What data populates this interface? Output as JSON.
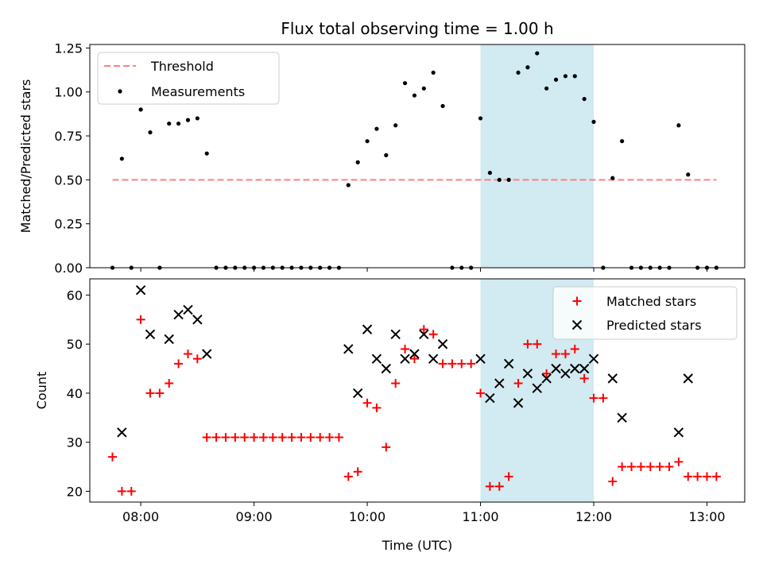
{
  "chart_data": [
    {
      "type": "scatter",
      "title": "Flux total observing time = 1.00 h",
      "xlabel": "",
      "ylabel": "Matched/Predicted stars",
      "xlim": [
        "07:33",
        "13:20"
      ],
      "ylim": [
        0,
        1.27
      ],
      "yticks": [
        "0.00",
        "0.25",
        "0.50",
        "0.75",
        "1.00",
        "1.25"
      ],
      "highlight_span": {
        "from": "11:00",
        "to": "12:00",
        "color": "#add8e6"
      },
      "legend": {
        "placement": "top-left",
        "entries": [
          "Threshold",
          "Measurements"
        ]
      },
      "series": [
        {
          "name": "Threshold",
          "style": "dashed-line",
          "color": "#ff7f7f",
          "points": [
            [
              "07:45",
              0.5
            ],
            [
              "13:05",
              0.5
            ]
          ]
        },
        {
          "name": "Measurements",
          "style": "dot",
          "color": "#000000",
          "points": [
            [
              "07:45",
              0.0
            ],
            [
              "07:50",
              0.62
            ],
            [
              "07:55",
              0.0
            ],
            [
              "08:00",
              0.9
            ],
            [
              "08:05",
              0.77
            ],
            [
              "08:10",
              0.0
            ],
            [
              "08:15",
              0.82
            ],
            [
              "08:20",
              0.82
            ],
            [
              "08:25",
              0.84
            ],
            [
              "08:30",
              0.85
            ],
            [
              "08:35",
              0.65
            ],
            [
              "08:40",
              0.0
            ],
            [
              "08:45",
              0.0
            ],
            [
              "08:50",
              0.0
            ],
            [
              "08:55",
              0.0
            ],
            [
              "09:00",
              0.0
            ],
            [
              "09:05",
              0.0
            ],
            [
              "09:10",
              0.0
            ],
            [
              "09:15",
              0.0
            ],
            [
              "09:20",
              0.0
            ],
            [
              "09:25",
              0.0
            ],
            [
              "09:30",
              0.0
            ],
            [
              "09:35",
              0.0
            ],
            [
              "09:40",
              0.0
            ],
            [
              "09:45",
              0.0
            ],
            [
              "09:50",
              0.47
            ],
            [
              "09:55",
              0.6
            ],
            [
              "10:00",
              0.72
            ],
            [
              "10:05",
              0.79
            ],
            [
              "10:10",
              0.64
            ],
            [
              "10:15",
              0.81
            ],
            [
              "10:20",
              1.05
            ],
            [
              "10:25",
              0.98
            ],
            [
              "10:30",
              1.02
            ],
            [
              "10:35",
              1.11
            ],
            [
              "10:40",
              0.92
            ],
            [
              "10:45",
              0.0
            ],
            [
              "10:50",
              0.0
            ],
            [
              "10:55",
              0.0
            ],
            [
              "11:00",
              0.85
            ],
            [
              "11:05",
              0.54
            ],
            [
              "11:10",
              0.5
            ],
            [
              "11:15",
              0.5
            ],
            [
              "11:20",
              1.11
            ],
            [
              "11:25",
              1.14
            ],
            [
              "11:30",
              1.22
            ],
            [
              "11:35",
              1.02
            ],
            [
              "11:40",
              1.07
            ],
            [
              "11:45",
              1.09
            ],
            [
              "11:50",
              1.09
            ],
            [
              "11:55",
              0.96
            ],
            [
              "12:00",
              0.83
            ],
            [
              "12:05",
              0.0
            ],
            [
              "12:10",
              0.51
            ],
            [
              "12:15",
              0.72
            ],
            [
              "12:20",
              0.0
            ],
            [
              "12:25",
              0.0
            ],
            [
              "12:30",
              0.0
            ],
            [
              "12:35",
              0.0
            ],
            [
              "12:40",
              0.0
            ],
            [
              "12:45",
              0.81
            ],
            [
              "12:50",
              0.53
            ],
            [
              "12:55",
              0.0
            ],
            [
              "13:00",
              0.0
            ],
            [
              "13:05",
              0.0
            ]
          ]
        }
      ]
    },
    {
      "type": "scatter",
      "title": "",
      "xlabel": "Time (UTC)",
      "ylabel": "Count",
      "xlim": [
        "07:33",
        "13:20"
      ],
      "ylim": [
        17.8,
        63.3
      ],
      "yticks": [
        "20",
        "30",
        "40",
        "50",
        "60"
      ],
      "xticks": [
        "08:00",
        "09:00",
        "10:00",
        "11:00",
        "12:00",
        "13:00"
      ],
      "highlight_span": {
        "from": "11:00",
        "to": "12:00",
        "color": "#add8e6"
      },
      "legend": {
        "placement": "top-right",
        "entries": [
          "Matched stars",
          "Predicted stars"
        ]
      },
      "series": [
        {
          "name": "Matched stars",
          "marker": "plus",
          "color": "#ff0000",
          "points": [
            [
              "07:45",
              27
            ],
            [
              "07:50",
              20
            ],
            [
              "07:55",
              20
            ],
            [
              "08:00",
              55
            ],
            [
              "08:05",
              40
            ],
            [
              "08:10",
              40
            ],
            [
              "08:15",
              42
            ],
            [
              "08:20",
              46
            ],
            [
              "08:25",
              48
            ],
            [
              "08:30",
              47
            ],
            [
              "08:35",
              31
            ],
            [
              "08:40",
              31
            ],
            [
              "08:45",
              31
            ],
            [
              "08:50",
              31
            ],
            [
              "08:55",
              31
            ],
            [
              "09:00",
              31
            ],
            [
              "09:05",
              31
            ],
            [
              "09:10",
              31
            ],
            [
              "09:15",
              31
            ],
            [
              "09:20",
              31
            ],
            [
              "09:25",
              31
            ],
            [
              "09:30",
              31
            ],
            [
              "09:35",
              31
            ],
            [
              "09:40",
              31
            ],
            [
              "09:45",
              31
            ],
            [
              "09:50",
              23
            ],
            [
              "09:55",
              24
            ],
            [
              "10:00",
              38
            ],
            [
              "10:05",
              37
            ],
            [
              "10:10",
              29
            ],
            [
              "10:15",
              42
            ],
            [
              "10:20",
              49
            ],
            [
              "10:25",
              47
            ],
            [
              "10:30",
              53
            ],
            [
              "10:35",
              52
            ],
            [
              "10:40",
              46
            ],
            [
              "10:45",
              46
            ],
            [
              "10:50",
              46
            ],
            [
              "10:55",
              46
            ],
            [
              "11:00",
              40
            ],
            [
              "11:05",
              21
            ],
            [
              "11:10",
              21
            ],
            [
              "11:15",
              23
            ],
            [
              "11:20",
              42
            ],
            [
              "11:25",
              50
            ],
            [
              "11:30",
              50
            ],
            [
              "11:35",
              44
            ],
            [
              "11:40",
              48
            ],
            [
              "11:45",
              48
            ],
            [
              "11:50",
              49
            ],
            [
              "11:55",
              43
            ],
            [
              "12:00",
              39
            ],
            [
              "12:05",
              39
            ],
            [
              "12:10",
              22
            ],
            [
              "12:15",
              25
            ],
            [
              "12:20",
              25
            ],
            [
              "12:25",
              25
            ],
            [
              "12:30",
              25
            ],
            [
              "12:35",
              25
            ],
            [
              "12:40",
              25
            ],
            [
              "12:45",
              26
            ],
            [
              "12:50",
              23
            ],
            [
              "12:55",
              23
            ],
            [
              "13:00",
              23
            ],
            [
              "13:05",
              23
            ]
          ]
        },
        {
          "name": "Predicted stars",
          "marker": "x",
          "color": "#000000",
          "points": [
            [
              "07:50",
              32
            ],
            [
              "08:00",
              61
            ],
            [
              "08:05",
              52
            ],
            [
              "08:15",
              51
            ],
            [
              "08:20",
              56
            ],
            [
              "08:25",
              57
            ],
            [
              "08:30",
              55
            ],
            [
              "08:35",
              48
            ],
            [
              "09:50",
              49
            ],
            [
              "09:55",
              40
            ],
            [
              "10:00",
              53
            ],
            [
              "10:05",
              47
            ],
            [
              "10:10",
              45
            ],
            [
              "10:15",
              52
            ],
            [
              "10:20",
              47
            ],
            [
              "10:25",
              48
            ],
            [
              "10:30",
              52
            ],
            [
              "10:35",
              47
            ],
            [
              "10:40",
              50
            ],
            [
              "11:00",
              47
            ],
            [
              "11:05",
              39
            ],
            [
              "11:10",
              42
            ],
            [
              "11:15",
              46
            ],
            [
              "11:20",
              38
            ],
            [
              "11:25",
              44
            ],
            [
              "11:30",
              41
            ],
            [
              "11:35",
              43
            ],
            [
              "11:40",
              45
            ],
            [
              "11:45",
              44
            ],
            [
              "11:50",
              45
            ],
            [
              "11:55",
              45
            ],
            [
              "12:00",
              47
            ],
            [
              "12:10",
              43
            ],
            [
              "12:15",
              35
            ],
            [
              "12:45",
              32
            ],
            [
              "12:50",
              43
            ]
          ]
        }
      ]
    }
  ]
}
